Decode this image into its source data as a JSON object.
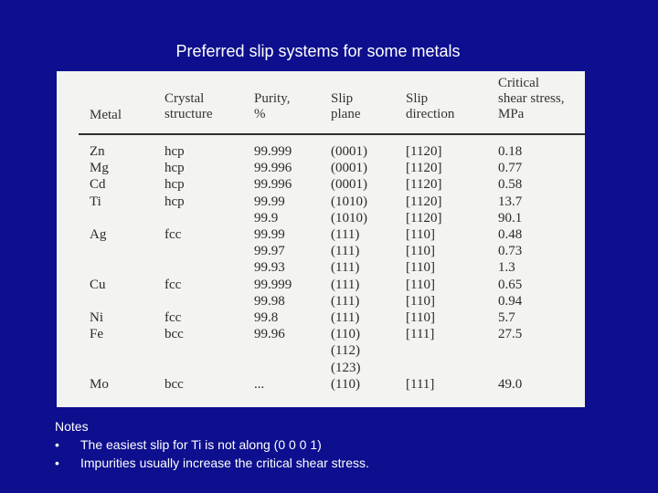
{
  "title": "Preferred slip systems for some metals",
  "table": {
    "headers": {
      "metal": [
        "Metal"
      ],
      "crystal_structure": [
        "Crystal",
        "structure"
      ],
      "purity": [
        "Purity,",
        "%"
      ],
      "slip_plane": [
        "Slip",
        "plane"
      ],
      "slip_direction": [
        "Slip",
        "direction"
      ],
      "critical_shear_stress": [
        "Critical",
        "shear stress,",
        "MPa"
      ]
    },
    "rows": [
      {
        "metal": "Zn",
        "structure": "hcp",
        "purity": "99.999",
        "plane": "(0001)",
        "direction": "[1120]",
        "stress": "0.18"
      },
      {
        "metal": "Mg",
        "structure": "hcp",
        "purity": "99.996",
        "plane": "(0001)",
        "direction": "[1120]",
        "stress": "0.77"
      },
      {
        "metal": "Cd",
        "structure": "hcp",
        "purity": "99.996",
        "plane": "(0001)",
        "direction": "[1120]",
        "stress": "0.58"
      },
      {
        "metal": "Ti",
        "structure": "hcp",
        "purity": "99.99",
        "plane": "(1010)",
        "direction": "[1120]",
        "stress": "13.7"
      },
      {
        "metal": "",
        "structure": "",
        "purity": "99.9",
        "plane": "(1010)",
        "direction": "[1120]",
        "stress": "90.1"
      },
      {
        "metal": "Ag",
        "structure": "fcc",
        "purity": "99.99",
        "plane": "(111)",
        "direction": "[110]",
        "stress": "0.48"
      },
      {
        "metal": "",
        "structure": "",
        "purity": "99.97",
        "plane": "(111)",
        "direction": "[110]",
        "stress": "0.73"
      },
      {
        "metal": "",
        "structure": "",
        "purity": "99.93",
        "plane": "(111)",
        "direction": "[110]",
        "stress": "1.3"
      },
      {
        "metal": "Cu",
        "structure": "fcc",
        "purity": "99.999",
        "plane": "(111)",
        "direction": "[110]",
        "stress": "0.65"
      },
      {
        "metal": "",
        "structure": "",
        "purity": "99.98",
        "plane": "(111)",
        "direction": "[110]",
        "stress": "0.94"
      },
      {
        "metal": "Ni",
        "structure": "fcc",
        "purity": "99.8",
        "plane": "(111)",
        "direction": "[110]",
        "stress": "5.7"
      },
      {
        "metal": "Fe",
        "structure": "bcc",
        "purity": "99.96",
        "plane": "(110)",
        "direction": "[111]",
        "stress": "27.5"
      },
      {
        "metal": "",
        "structure": "",
        "purity": "",
        "plane": "(112)",
        "direction": "",
        "stress": ""
      },
      {
        "metal": "",
        "structure": "",
        "purity": "",
        "plane": "(123)",
        "direction": "",
        "stress": ""
      },
      {
        "metal": "Mo",
        "structure": "bcc",
        "purity": "...",
        "plane": "(110)",
        "direction": "[111]",
        "stress": "49.0"
      }
    ]
  },
  "notes": {
    "heading": "Notes",
    "bullet": "•",
    "items": [
      "The easiest slip for Ti is not along (0 0 0 1)",
      "Impurities usually increase the critical shear stress."
    ]
  }
}
